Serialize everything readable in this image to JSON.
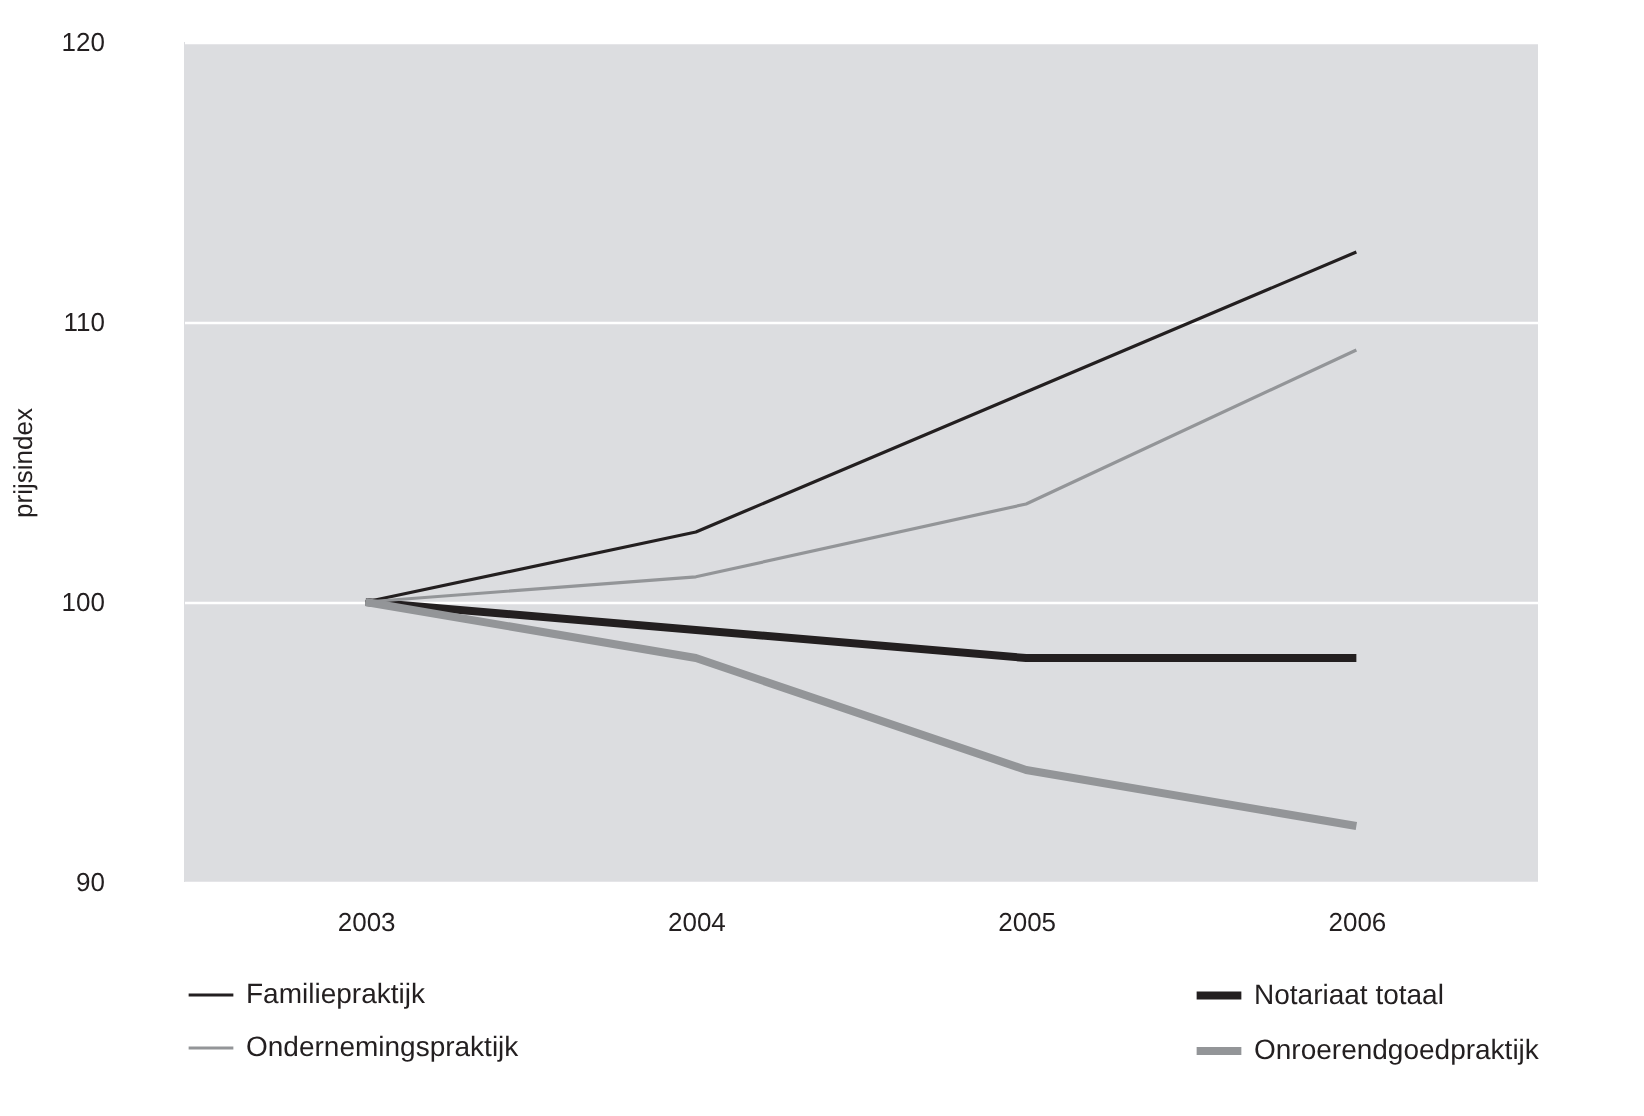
{
  "chart_data": {
    "type": "line",
    "ylabel": "prijsindex",
    "categories": [
      "2003",
      "2004",
      "2005",
      "2006"
    ],
    "series": [
      {
        "name": "Familiepraktijk",
        "color": "#231f20",
        "values": [
          100,
          102.5,
          107.5,
          112.5
        ]
      },
      {
        "name": "Notariaat totaal",
        "color": "#231f20",
        "values": [
          100,
          99,
          98,
          98
        ]
      },
      {
        "name": "Ondernemingspraktijk",
        "color": "#939598",
        "values": [
          100,
          100.9,
          103.5,
          109
        ]
      },
      {
        "name": "Onroerendgoedpraktijk",
        "color": "#939598",
        "values": [
          100,
          98,
          94,
          92
        ]
      }
    ],
    "ylim": [
      90,
      120
    ],
    "yticks": [
      90,
      100,
      110,
      120
    ],
    "grid": "y",
    "legend": "bottom",
    "marker": "none",
    "line_style": "solid"
  }
}
